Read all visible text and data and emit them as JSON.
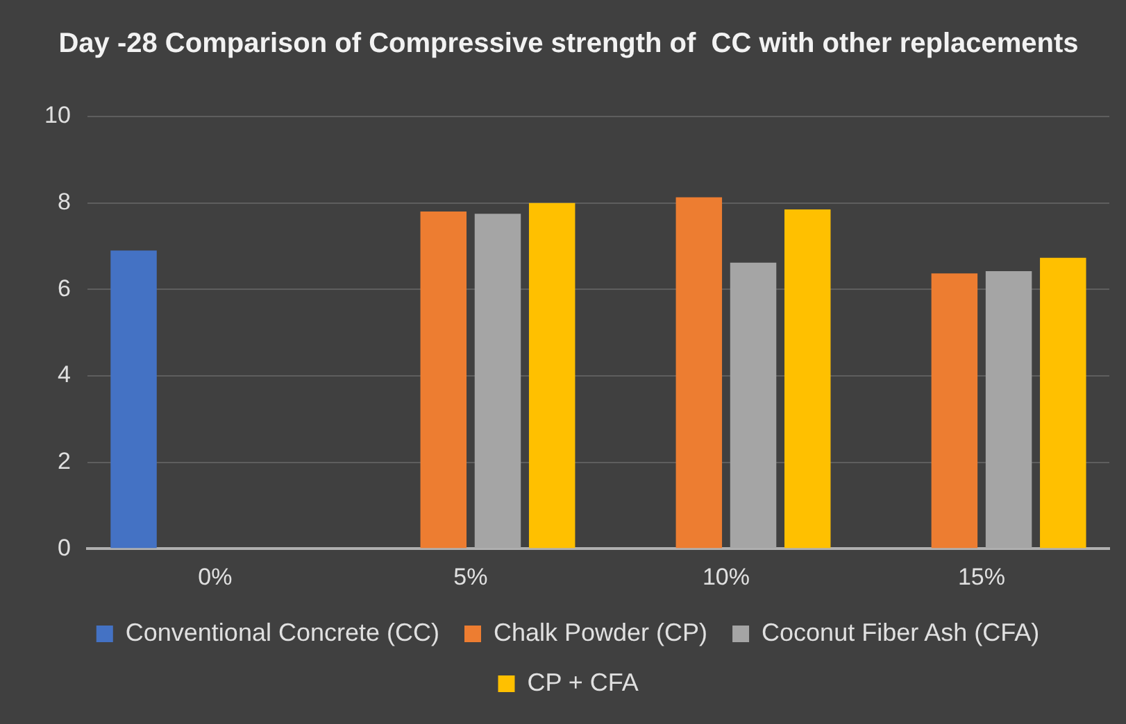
{
  "chart_data": {
    "type": "bar",
    "title": "Day -28 Comparison of Compressive strength of  CC with other replacements",
    "categories": [
      "0%",
      "5%",
      "10%",
      "15%"
    ],
    "series": [
      {
        "name": "Conventional Concrete (CC)",
        "color": "#4472c4",
        "values": [
          6.9,
          null,
          null,
          null
        ]
      },
      {
        "name": "Chalk Powder (CP)",
        "color": "#ed7d31",
        "values": [
          null,
          7.8,
          8.13,
          6.37
        ]
      },
      {
        "name": "Coconut Fiber Ash (CFA)",
        "color": "#a5a5a5",
        "values": [
          null,
          7.75,
          6.62,
          6.42
        ]
      },
      {
        "name": "CP + CFA",
        "color": "#ffc000",
        "values": [
          null,
          8.0,
          7.85,
          6.73
        ]
      }
    ],
    "ylim": [
      0,
      10
    ],
    "yticks": [
      0,
      2,
      4,
      6,
      8,
      10
    ],
    "grid": "y",
    "legend": "bottom"
  }
}
